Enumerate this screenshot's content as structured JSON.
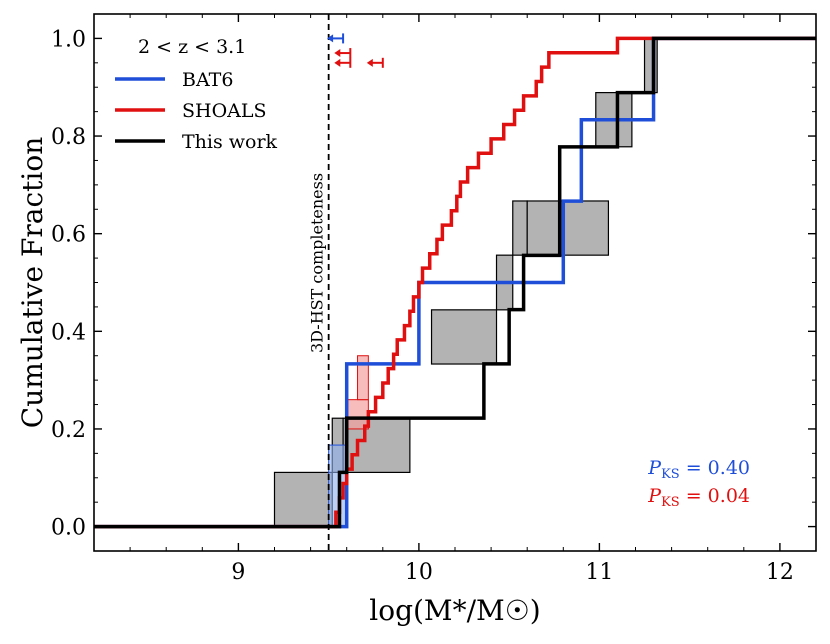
{
  "chart_data": {
    "type": "line",
    "xlabel": "log(M*/M☉)",
    "ylabel": "Cumulative Fraction",
    "xlim": [
      8.2,
      12.2
    ],
    "ylim": [
      -0.05,
      1.05
    ],
    "xticks": [
      9,
      10,
      11,
      12
    ],
    "yticks": [
      0.0,
      0.2,
      0.4,
      0.6,
      0.8,
      1.0
    ],
    "xtick_labels": [
      "9",
      "10",
      "11",
      "12"
    ],
    "ytick_labels": [
      "0.0",
      "0.2",
      "0.4",
      "0.6",
      "0.8",
      "1.0"
    ],
    "legend": {
      "title": "2 < z < 3.1",
      "placement": "top-left",
      "entries": [
        {
          "name": "BAT6",
          "color": "#1f4fd8"
        },
        {
          "name": "SHOALS",
          "color": "#e01010"
        },
        {
          "name": "This work",
          "color": "#000000"
        }
      ]
    },
    "completeness": {
      "x": 9.5,
      "label": "3D-HST completeness"
    },
    "series": [
      {
        "name": "BAT6",
        "color": "#1f4fd8",
        "masses": [
          9.6,
          9.6,
          10.0,
          10.8,
          10.9,
          11.3
        ],
        "final_x": 12.2
      },
      {
        "name": "SHOALS",
        "color": "#e01010",
        "masses": [
          9.54,
          9.56,
          9.58,
          9.6,
          9.63,
          9.66,
          9.7,
          9.72,
          9.76,
          9.8,
          9.83,
          9.86,
          9.88,
          9.92,
          9.95,
          9.97,
          10.0,
          10.02,
          10.06,
          10.1,
          10.13,
          10.18,
          10.21,
          10.23,
          10.27,
          10.33,
          10.4,
          10.47,
          10.53,
          10.58,
          10.65,
          10.68,
          10.72,
          11.1
        ],
        "final_x": 12.2
      },
      {
        "name": "This work",
        "color": "#000000",
        "masses": [
          9.56,
          9.6,
          10.36,
          10.5,
          10.58,
          10.78,
          10.78,
          11.1,
          11.3
        ],
        "final_x": 12.2,
        "bands": [
          {
            "x0": 9.2,
            "x1": 9.52,
            "y0": 0.0,
            "y1": 0.111
          },
          {
            "x0": 9.52,
            "x1": 9.58,
            "y0": 0.111,
            "y1": 0.222
          },
          {
            "x0": 9.58,
            "x1": 9.95,
            "y0": 0.111,
            "y1": 0.222
          },
          {
            "x0": 10.07,
            "x1": 10.43,
            "y0": 0.333,
            "y1": 0.444
          },
          {
            "x0": 10.43,
            "x1": 10.52,
            "y0": 0.444,
            "y1": 0.556
          },
          {
            "x0": 10.52,
            "x1": 10.6,
            "y0": 0.556,
            "y1": 0.667
          },
          {
            "x0": 10.6,
            "x1": 11.05,
            "y0": 0.556,
            "y1": 0.667
          },
          {
            "x0": 10.98,
            "x1": 11.18,
            "y0": 0.778,
            "y1": 0.889
          },
          {
            "x0": 11.25,
            "x1": 11.32,
            "y0": 0.889,
            "y1": 1.0
          }
        ]
      }
    ],
    "upper_limits": [
      {
        "series": "BAT6",
        "x": 9.58,
        "y": 1.0,
        "color": "#1f4fd8"
      },
      {
        "series": "SHOALS",
        "x": 9.62,
        "y": 0.97,
        "color": "#e01010"
      },
      {
        "series": "SHOALS",
        "x": 9.62,
        "y": 0.95,
        "color": "#e01010"
      },
      {
        "series": "SHOALS",
        "x": 9.8,
        "y": 0.95,
        "color": "#e01010"
      }
    ],
    "annotations": [
      {
        "text_main": "P",
        "text_sub": "KS",
        "text_val": " = 0.40",
        "color": "#1f4fd8"
      },
      {
        "text_main": "P",
        "text_sub": "KS",
        "text_val": " = 0.04",
        "color": "#e01010"
      }
    ]
  }
}
